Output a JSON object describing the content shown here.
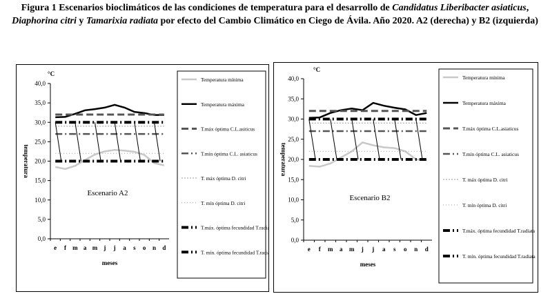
{
  "caption": {
    "part1": "Figura 1 Escenarios bioclimáticos de las condiciones de temperatura para el desarrollo de ",
    "species1": "Candidatus Liberibacter asiaticus",
    "sep1": ",  ",
    "species2": "Diaphorina citri",
    "sep2": " y ",
    "species3": "Tamarixia radiata",
    "part2": " por efecto del Cambio Climático  en Ciego de Ávila. Año 2020. A2 (derecha) y B2 (izquierda)"
  },
  "colors": {
    "tmin": "#c8c8c8",
    "tmax": "#000000",
    "clas": "#555555",
    "dcitri": "#999999",
    "tradiata": "#000000"
  },
  "chart_data": [
    {
      "type": "line",
      "scenario_label": "Escenario A2",
      "unit_label": "°C",
      "ylabel": "temperatura",
      "xlabel": "meses",
      "categories": [
        "e",
        "f",
        "m",
        "a",
        "m",
        "j",
        "j",
        "a",
        "s",
        "o",
        "n",
        "d"
      ],
      "ylim": [
        0,
        40
      ],
      "yticks": [
        "0,0",
        "5,0",
        "10,0",
        "15,0",
        "20,0",
        "25,0",
        "30,0",
        "35,0",
        "40,0"
      ],
      "series": [
        {
          "name": "Temperatura mínima",
          "values": [
            18.5,
            18.0,
            18.8,
            20.3,
            21.7,
            22.5,
            22.9,
            22.7,
            22.4,
            21.6,
            19.5,
            18.9
          ]
        },
        {
          "name": "Temperatura máxima",
          "values": [
            31.3,
            31.4,
            32.2,
            33.1,
            33.4,
            33.8,
            34.5,
            33.8,
            32.7,
            32.4,
            31.9,
            31.9
          ]
        },
        {
          "name": "T.máx óptima C.L.asiticus",
          "values": [
            32,
            32,
            32,
            32,
            32,
            32,
            32,
            32,
            32,
            32,
            32,
            32
          ]
        },
        {
          "name": "T.mín óptima C.L. asiaticus",
          "values": [
            27,
            27,
            27,
            27,
            27,
            27,
            27,
            27,
            27,
            27,
            27,
            27
          ]
        },
        {
          "name": "T. máx óptima D. citri",
          "values": [
            29,
            29,
            29,
            29,
            29,
            29,
            29,
            29,
            29,
            29,
            29,
            29
          ]
        },
        {
          "name": "T. mín óptima D. citri",
          "values": [
            22,
            22,
            22,
            22,
            22,
            22,
            22,
            22,
            22,
            22,
            22,
            22
          ]
        },
        {
          "name": "T.máx. óptima fecundidad T.radiata",
          "values": [
            30,
            30,
            30,
            30,
            30,
            30,
            30,
            30,
            30,
            30,
            30,
            30
          ]
        },
        {
          "name": "T. mín. óptima fecundidad T.radiata",
          "values": [
            20,
            20,
            20,
            20,
            20,
            20,
            20,
            20,
            20,
            20,
            20,
            20
          ]
        }
      ]
    },
    {
      "type": "line",
      "scenario_label": "Escenario B2",
      "unit_label": "°C",
      "ylabel": "temperatura",
      "xlabel": "meses",
      "categories": [
        "e",
        "f",
        "m",
        "a",
        "m",
        "j",
        "j",
        "a",
        "s",
        "o",
        "n",
        "d"
      ],
      "ylim": [
        0,
        40
      ],
      "yticks": [
        "0,0",
        "5,0",
        "10,0",
        "15,0",
        "20,0",
        "25,0",
        "30,0",
        "35,0",
        "40,0"
      ],
      "series": [
        {
          "name": "Temperatura mínima",
          "values": [
            18.4,
            18.2,
            19.0,
            20.5,
            22.0,
            24.2,
            23.5,
            23.0,
            22.8,
            22.0,
            20.0,
            19.8
          ]
        },
        {
          "name": "Temperatura máxima",
          "values": [
            30.3,
            30.4,
            31.5,
            32.2,
            32.6,
            32.2,
            34.0,
            33.3,
            32.8,
            32.4,
            31.0,
            31.5
          ]
        },
        {
          "name": "T.máx óptima C.L.asiaticus",
          "values": [
            32,
            32,
            32,
            32,
            32,
            32,
            32,
            32,
            32,
            32,
            32,
            32
          ]
        },
        {
          "name": "T.mín óptima C.L. asiaticus",
          "values": [
            27,
            27,
            27,
            27,
            27,
            27,
            27,
            27,
            27,
            27,
            27,
            27
          ]
        },
        {
          "name": "T. máx óptima D. citri",
          "values": [
            29,
            29,
            29,
            29,
            29,
            29,
            29,
            29,
            29,
            29,
            29,
            29
          ]
        },
        {
          "name": "T. mín óptima D. citri",
          "values": [
            22,
            22,
            22,
            22,
            22,
            22,
            22,
            22,
            22,
            22,
            22,
            22
          ]
        },
        {
          "name": "T.máx. óptima fecundidad T.radiata",
          "values": [
            30,
            30,
            30,
            30,
            30,
            30,
            30,
            30,
            30,
            30,
            30,
            30
          ]
        },
        {
          "name": "T. mín. óptima fecundidad T.radiata",
          "values": [
            20,
            20,
            20,
            20,
            20,
            20,
            20,
            20,
            20,
            20,
            20,
            20
          ]
        }
      ]
    }
  ]
}
